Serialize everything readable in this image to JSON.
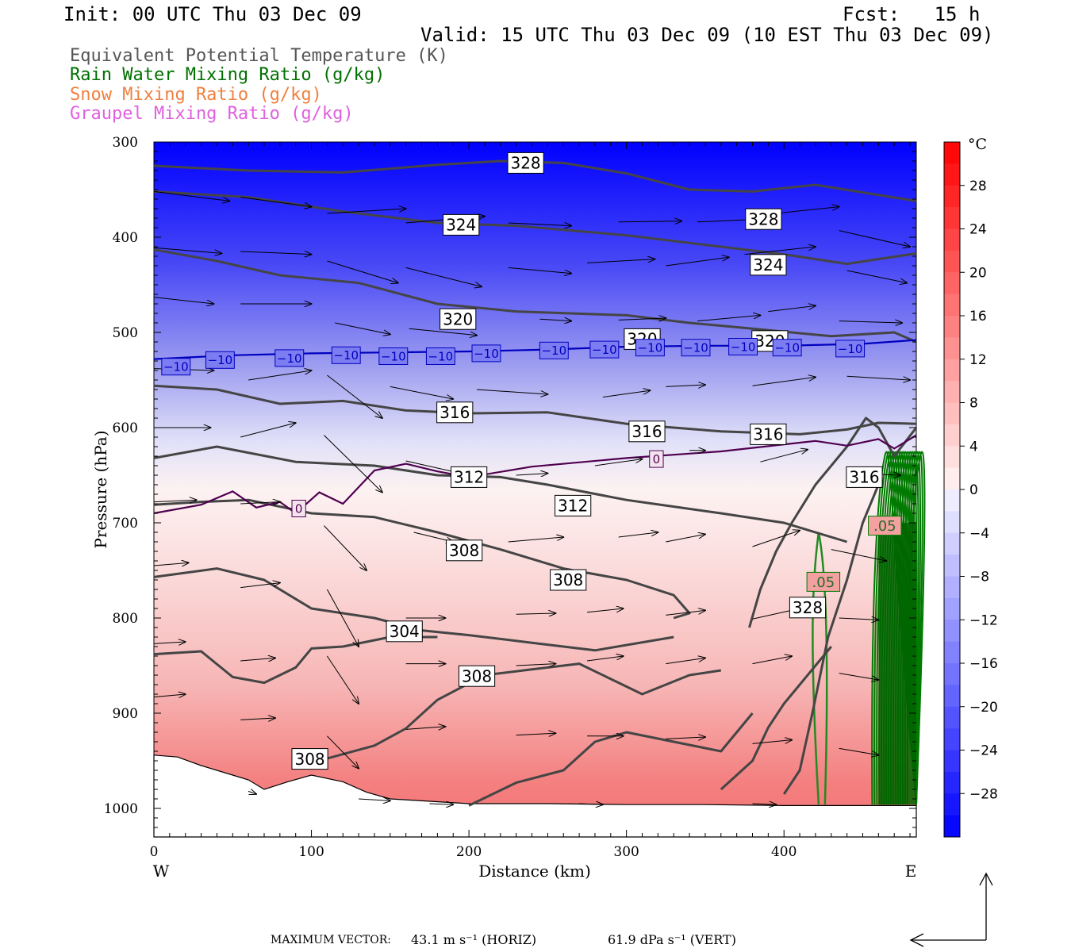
{
  "header": {
    "init": "Init: 00 UTC Thu 03 Dec 09",
    "fcst": "Fcst:   15 h",
    "valid": "Valid: 15 UTC Thu 03 Dec 09 (10 EST Thu 03 Dec 09)"
  },
  "legend": [
    {
      "text": "Equivalent Potential Temperature (K)",
      "color": "#555555"
    },
    {
      "text": "Rain Water Mixing Ratio (g/kg)",
      "color": "#007000"
    },
    {
      "text": "Snow Mixing Ratio (g/kg)",
      "color": "#f08040"
    },
    {
      "text": "Graupel Mixing Ratio (g/kg)",
      "color": "#e060e0"
    }
  ],
  "footer": {
    "max_vector_label": "MAXIMUM VECTOR:",
    "horiz": "43.1 m s⁻¹ (HORIZ)",
    "vert": "61.9 dPa s⁻¹ (VERT)"
  },
  "chart_data": {
    "type": "cross-section",
    "xlabel": "Distance (km)",
    "ylabel": "Pressure (hPa)",
    "x_range": [
      0,
      484
    ],
    "y_range": [
      300,
      1030
    ],
    "y_scale": "linear, inverted",
    "x_ticks": [
      "0",
      "100",
      "200",
      "300",
      "400"
    ],
    "y_ticks": [
      "300",
      "400",
      "500",
      "600",
      "700",
      "800",
      "900",
      "1000"
    ],
    "x_end_labels": {
      "left": "W",
      "right": "E"
    },
    "colorbar": {
      "unit": "°C",
      "range": [
        -32,
        32
      ],
      "labels": [
        "28",
        "24",
        "20",
        "16",
        "12",
        "8",
        "4",
        "0",
        "-4",
        "-8",
        "-12",
        "-16",
        "-20",
        "-24",
        "-28"
      ],
      "cold_color": "#0000ff",
      "warm_color": "#ff0000"
    },
    "temperature_contours": [
      {
        "value": "-10",
        "color": "#0000c0",
        "points": [
          [
            0,
            528
          ],
          [
            50,
            524
          ],
          [
            100,
            522
          ],
          [
            150,
            521
          ],
          [
            200,
            520
          ],
          [
            250,
            518
          ],
          [
            300,
            515
          ],
          [
            350,
            514
          ],
          [
            400,
            514
          ],
          [
            450,
            512
          ],
          [
            484,
            508
          ]
        ],
        "labels": [
          [
            14,
            536
          ],
          [
            42,
            529
          ],
          [
            86,
            527
          ],
          [
            122,
            524
          ],
          [
            152,
            525
          ],
          [
            182,
            525
          ],
          [
            211,
            522
          ],
          [
            254,
            519
          ],
          [
            286,
            518
          ],
          [
            315,
            516
          ],
          [
            344,
            516
          ],
          [
            374,
            515
          ],
          [
            402,
            516
          ],
          [
            442,
            517
          ]
        ]
      },
      {
        "value": "0",
        "color": "#500050",
        "points": [
          [
            0,
            690
          ],
          [
            30,
            681
          ],
          [
            50,
            667
          ],
          [
            65,
            684
          ],
          [
            80,
            678
          ],
          [
            90,
            690
          ],
          [
            105,
            668
          ],
          [
            120,
            680
          ],
          [
            140,
            645
          ],
          [
            160,
            638
          ],
          [
            180,
            646
          ],
          [
            200,
            652
          ],
          [
            240,
            641
          ],
          [
            300,
            632
          ],
          [
            360,
            625
          ],
          [
            420,
            614
          ],
          [
            440,
            619
          ],
          [
            460,
            612
          ],
          [
            470,
            622
          ],
          [
            484,
            608
          ]
        ],
        "labels": [
          [
            92,
            685
          ],
          [
            319,
            633
          ]
        ]
      }
    ],
    "theta_e_contours": [
      {
        "value": "328",
        "labels": [
          [
            236,
            322
          ],
          [
            387,
            381
          ],
          [
            415,
            789
          ]
        ]
      },
      {
        "value": "324",
        "labels": [
          [
            195,
            387
          ],
          [
            390,
            429
          ]
        ]
      },
      {
        "value": "320",
        "labels": [
          [
            193,
            486
          ],
          [
            310,
            507
          ],
          [
            391,
            509
          ]
        ]
      },
      {
        "value": "316",
        "labels": [
          [
            191,
            584
          ],
          [
            313,
            604
          ],
          [
            390,
            607
          ],
          [
            451,
            652
          ]
        ]
      },
      {
        "value": "312",
        "labels": [
          [
            200,
            652
          ],
          [
            266,
            682
          ]
        ]
      },
      {
        "value": "308",
        "labels": [
          [
            197,
            729
          ],
          [
            263,
            760
          ],
          [
            205,
            861
          ],
          [
            99,
            948
          ]
        ]
      },
      {
        "value": "304",
        "labels": [
          [
            159,
            814
          ]
        ]
      }
    ],
    "rain_contours": [
      {
        "value": ".05",
        "labels": [
          [
            425,
            762
          ],
          [
            464,
            703
          ]
        ]
      }
    ],
    "max_vector": {
      "horizontal_m_s": 43.1,
      "vertical_dPa_s": 61.9
    }
  }
}
